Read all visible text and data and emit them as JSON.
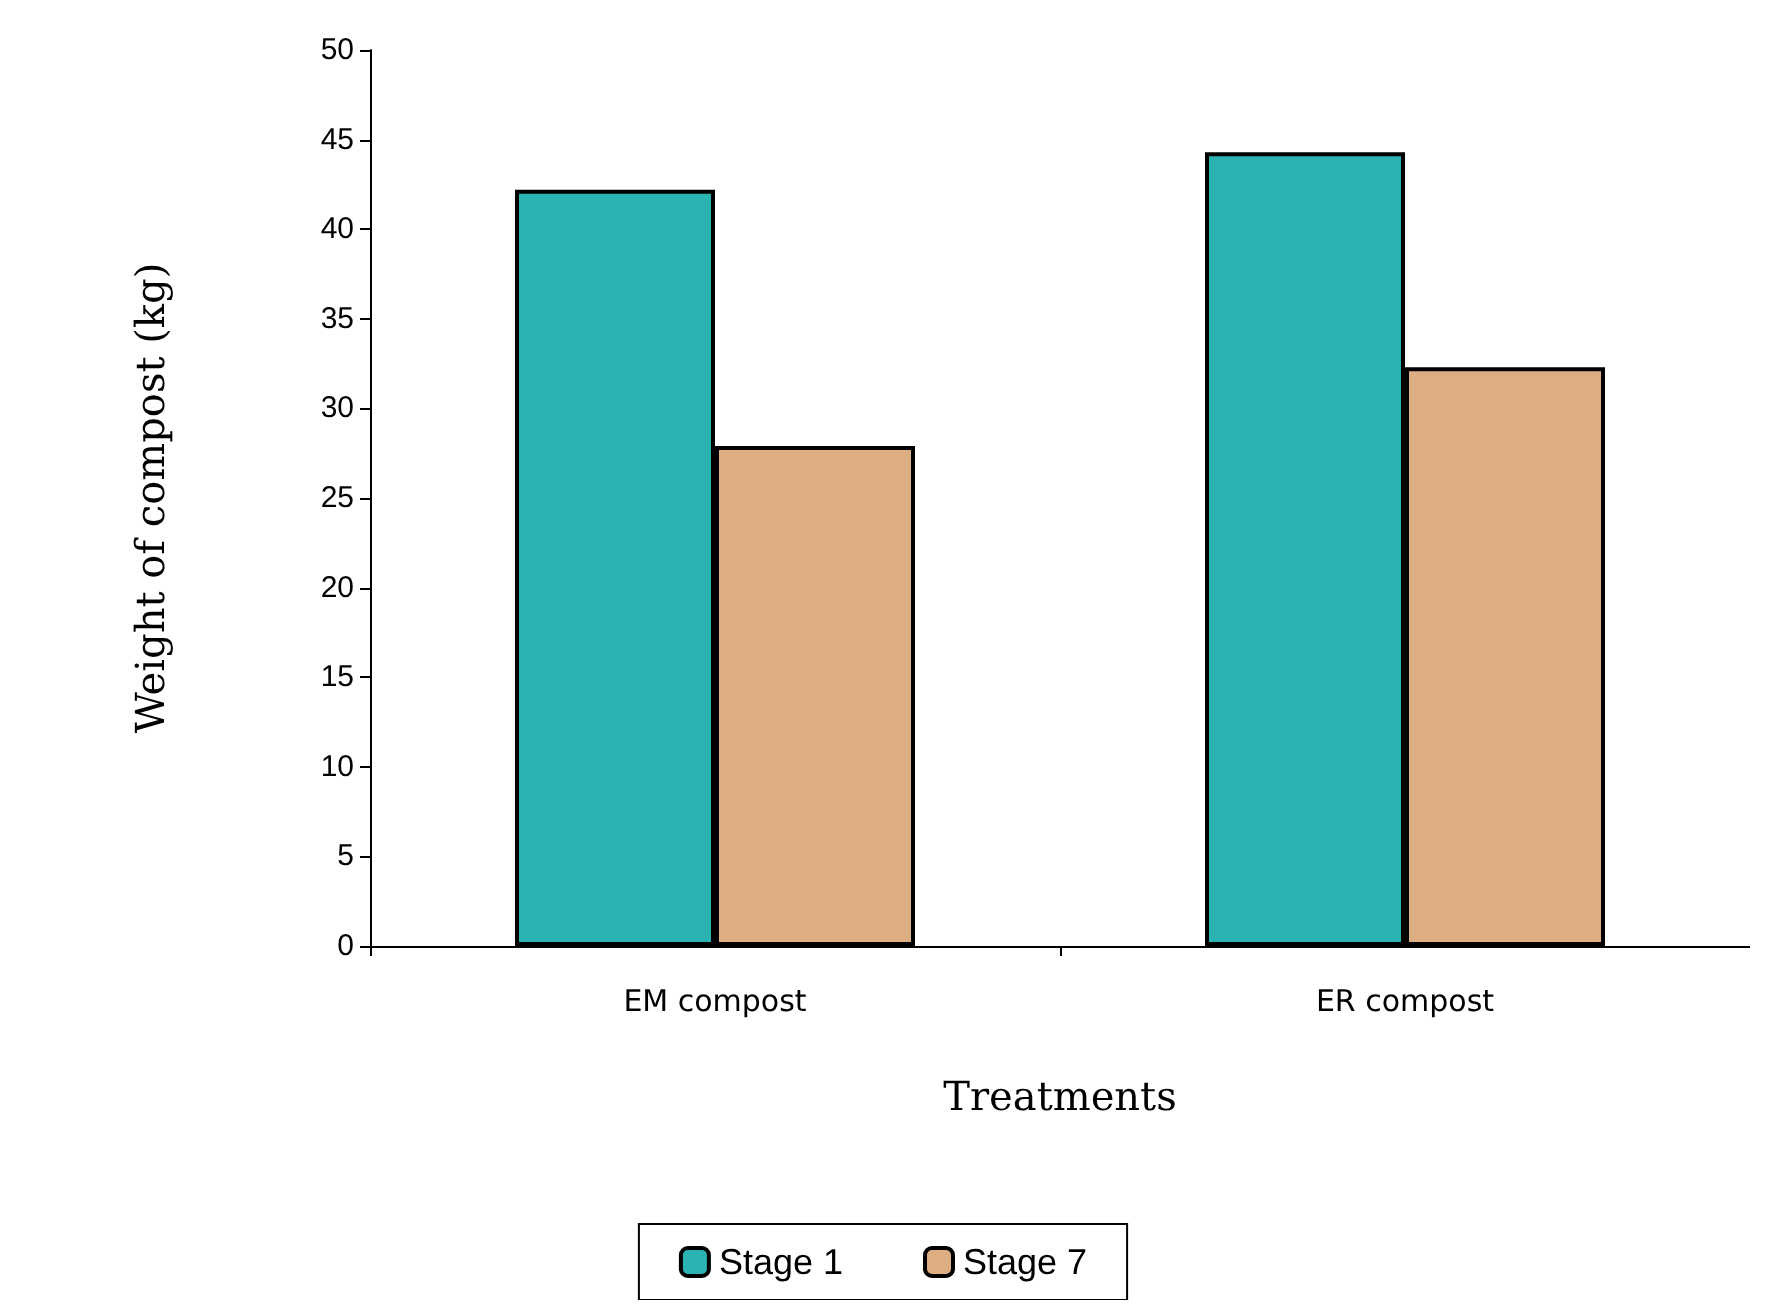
{
  "chart_data": {
    "type": "bar",
    "xlabel": "Treatments",
    "ylabel": "Weight of compost (kg)",
    "categories": [
      "EM compost",
      "ER compost"
    ],
    "series": [
      {
        "name": "Stage 1",
        "color": "#2bb3b3",
        "values": [
          42.2,
          44.3
        ]
      },
      {
        "name": "Stage 7",
        "color": "#dcae82",
        "values": [
          27.9,
          32.3
        ]
      }
    ],
    "ylim": [
      0,
      50
    ],
    "yticks": [
      0,
      5,
      10,
      15,
      20,
      25,
      30,
      35,
      40,
      45,
      50
    ],
    "grid": false,
    "legend": "bottom"
  }
}
